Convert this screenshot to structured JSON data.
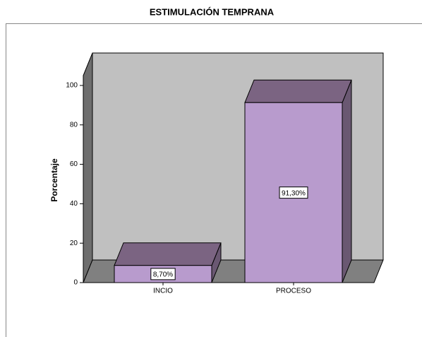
{
  "chart_data": {
    "type": "bar",
    "title": "ESTIMULACIÓN TEMPRANA",
    "ylabel": "Porcentaje",
    "categories": [
      "INCIO",
      "PROCESO"
    ],
    "values": [
      8.7,
      91.3
    ],
    "value_labels": [
      "8,70%",
      "91,30%"
    ],
    "color": "#b89bcd",
    "ylim": [
      0,
      105
    ],
    "yticks": [
      0,
      20,
      40,
      60,
      80,
      100
    ]
  }
}
